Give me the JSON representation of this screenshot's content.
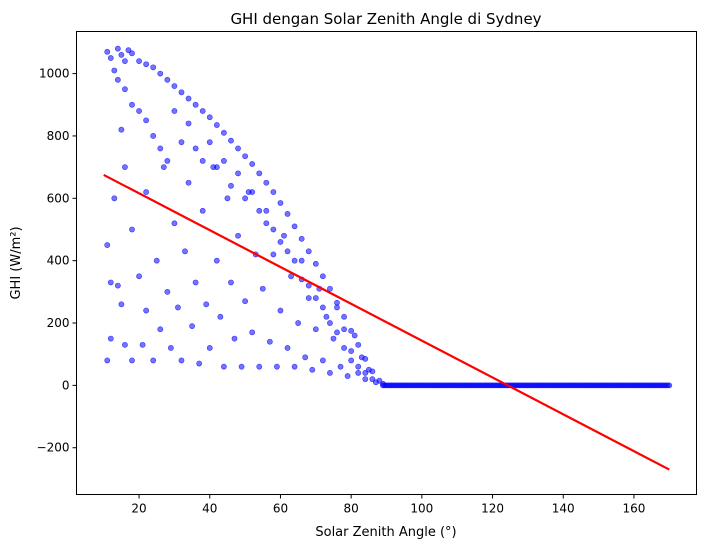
{
  "chart_data": {
    "type": "scatter",
    "title": "GHI dengan Solar Zenith Angle di Sydney",
    "xlabel": "Solar Zenith Angle (°)",
    "ylabel": "GHI (W/m²)",
    "xlim": [
      2.3,
      177.7
    ],
    "ylim": [
      -350,
      1135
    ],
    "xticks": [
      20,
      40,
      60,
      80,
      100,
      120,
      140,
      160
    ],
    "yticks": [
      -200,
      0,
      200,
      400,
      600,
      800,
      1000
    ],
    "ytick_labels": [
      "−200",
      "0",
      "200",
      "400",
      "600",
      "800",
      "1000"
    ],
    "grid": false,
    "legend": "none",
    "colors": {
      "scatter": "#0000ff",
      "fit_line": "#ff0000"
    },
    "series": [
      {
        "kind": "scatter",
        "points": [
          [
            11,
            1070
          ],
          [
            12,
            1050
          ],
          [
            13,
            1010
          ],
          [
            14,
            1080
          ],
          [
            15,
            1060
          ],
          [
            16,
            1040
          ],
          [
            17,
            1075
          ],
          [
            18,
            1065
          ],
          [
            20,
            1040
          ],
          [
            22,
            1030
          ],
          [
            24,
            1020
          ],
          [
            26,
            1000
          ],
          [
            28,
            980
          ],
          [
            30,
            960
          ],
          [
            32,
            940
          ],
          [
            34,
            920
          ],
          [
            36,
            900
          ],
          [
            38,
            880
          ],
          [
            40,
            860
          ],
          [
            42,
            835
          ],
          [
            44,
            810
          ],
          [
            46,
            785
          ],
          [
            48,
            760
          ],
          [
            50,
            735
          ],
          [
            52,
            710
          ],
          [
            54,
            680
          ],
          [
            56,
            650
          ],
          [
            58,
            620
          ],
          [
            60,
            585
          ],
          [
            62,
            550
          ],
          [
            64,
            510
          ],
          [
            66,
            470
          ],
          [
            68,
            430
          ],
          [
            70,
            390
          ],
          [
            72,
            350
          ],
          [
            74,
            310
          ],
          [
            76,
            265
          ],
          [
            78,
            220
          ],
          [
            80,
            175
          ],
          [
            82,
            130
          ],
          [
            84,
            85
          ],
          [
            86,
            45
          ],
          [
            88,
            15
          ],
          [
            89,
            5
          ],
          [
            11,
            450
          ],
          [
            12,
            330
          ],
          [
            11,
            80
          ],
          [
            12,
            150
          ],
          [
            13,
            600
          ],
          [
            14,
            320
          ],
          [
            15,
            260
          ],
          [
            16,
            130
          ],
          [
            15,
            820
          ],
          [
            16,
            700
          ],
          [
            18,
            500
          ],
          [
            18,
            80
          ],
          [
            20,
            350
          ],
          [
            21,
            130
          ],
          [
            22,
            620
          ],
          [
            22,
            240
          ],
          [
            24,
            80
          ],
          [
            25,
            400
          ],
          [
            26,
            180
          ],
          [
            27,
            700
          ],
          [
            28,
            300
          ],
          [
            29,
            120
          ],
          [
            30,
            520
          ],
          [
            31,
            250
          ],
          [
            32,
            80
          ],
          [
            33,
            430
          ],
          [
            34,
            650
          ],
          [
            35,
            190
          ],
          [
            36,
            330
          ],
          [
            37,
            70
          ],
          [
            38,
            560
          ],
          [
            39,
            260
          ],
          [
            40,
            120
          ],
          [
            41,
            700
          ],
          [
            42,
            400
          ],
          [
            43,
            220
          ],
          [
            44,
            60
          ],
          [
            45,
            600
          ],
          [
            46,
            330
          ],
          [
            47,
            150
          ],
          [
            48,
            480
          ],
          [
            49,
            60
          ],
          [
            50,
            270
          ],
          [
            51,
            620
          ],
          [
            52,
            170
          ],
          [
            53,
            420
          ],
          [
            54,
            60
          ],
          [
            55,
            310
          ],
          [
            56,
            560
          ],
          [
            57,
            140
          ],
          [
            58,
            420
          ],
          [
            59,
            60
          ],
          [
            60,
            240
          ],
          [
            61,
            480
          ],
          [
            62,
            120
          ],
          [
            63,
            350
          ],
          [
            64,
            60
          ],
          [
            65,
            200
          ],
          [
            66,
            400
          ],
          [
            67,
            90
          ],
          [
            68,
            280
          ],
          [
            69,
            50
          ],
          [
            70,
            180
          ],
          [
            71,
            310
          ],
          [
            72,
            80
          ],
          [
            73,
            220
          ],
          [
            74,
            40
          ],
          [
            75,
            150
          ],
          [
            76,
            250
          ],
          [
            77,
            60
          ],
          [
            78,
            180
          ],
          [
            79,
            30
          ],
          [
            80,
            110
          ],
          [
            81,
            160
          ],
          [
            82,
            40
          ],
          [
            83,
            90
          ],
          [
            84,
            20
          ],
          [
            85,
            50
          ],
          [
            86,
            20
          ],
          [
            87,
            10
          ],
          [
            14,
            980
          ],
          [
            16,
            950
          ],
          [
            18,
            900
          ],
          [
            20,
            880
          ],
          [
            22,
            850
          ],
          [
            24,
            800
          ],
          [
            26,
            760
          ],
          [
            28,
            720
          ],
          [
            30,
            880
          ],
          [
            32,
            780
          ],
          [
            34,
            840
          ],
          [
            36,
            760
          ],
          [
            38,
            720
          ],
          [
            40,
            780
          ],
          [
            42,
            700
          ],
          [
            44,
            720
          ],
          [
            46,
            640
          ],
          [
            48,
            680
          ],
          [
            50,
            600
          ],
          [
            52,
            620
          ],
          [
            54,
            560
          ],
          [
            56,
            520
          ],
          [
            58,
            500
          ],
          [
            60,
            460
          ],
          [
            62,
            430
          ],
          [
            64,
            400
          ],
          [
            66,
            340
          ],
          [
            68,
            320
          ],
          [
            70,
            280
          ],
          [
            72,
            250
          ],
          [
            74,
            200
          ],
          [
            76,
            170
          ],
          [
            78,
            120
          ],
          [
            80,
            80
          ],
          [
            82,
            60
          ],
          [
            84,
            40
          ]
        ]
      },
      {
        "kind": "scatter_zero_band",
        "x_range": [
          89,
          170
        ],
        "y": 0
      },
      {
        "kind": "line",
        "points": [
          [
            10,
            675
          ],
          [
            170,
            -270
          ]
        ]
      }
    ]
  }
}
